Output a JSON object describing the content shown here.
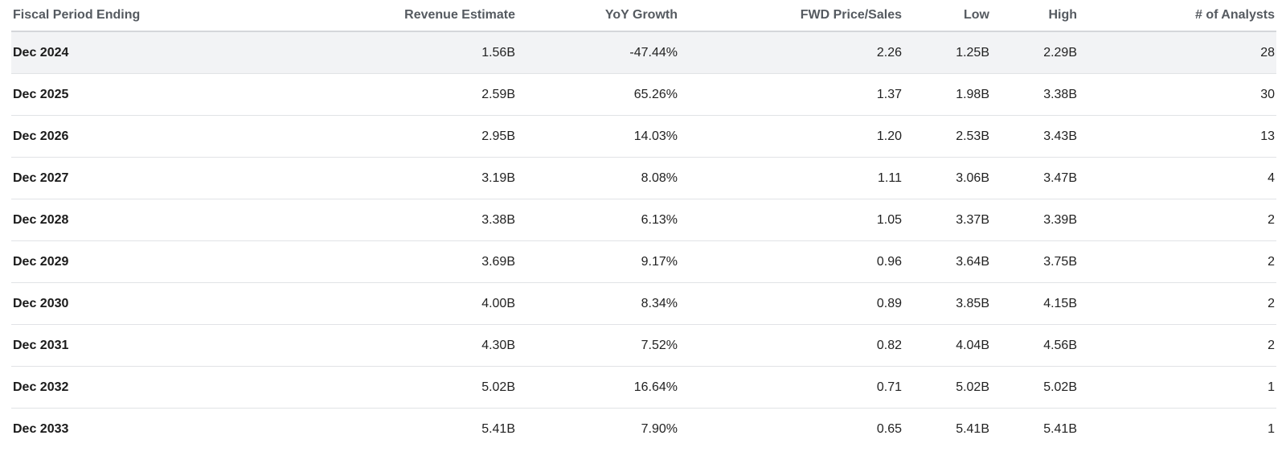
{
  "table": {
    "columns": [
      "Fiscal Period Ending",
      "Revenue Estimate",
      "YoY Growth",
      "FWD Price/Sales",
      "Low",
      "High",
      "# of Analysts"
    ],
    "rows": [
      [
        "Dec 2024",
        "1.56B",
        "-47.44%",
        "2.26",
        "1.25B",
        "2.29B",
        "28"
      ],
      [
        "Dec 2025",
        "2.59B",
        "65.26%",
        "1.37",
        "1.98B",
        "3.38B",
        "30"
      ],
      [
        "Dec 2026",
        "2.95B",
        "14.03%",
        "1.20",
        "2.53B",
        "3.43B",
        "13"
      ],
      [
        "Dec 2027",
        "3.19B",
        "8.08%",
        "1.11",
        "3.06B",
        "3.47B",
        "4"
      ],
      [
        "Dec 2028",
        "3.38B",
        "6.13%",
        "1.05",
        "3.37B",
        "3.39B",
        "2"
      ],
      [
        "Dec 2029",
        "3.69B",
        "9.17%",
        "0.96",
        "3.64B",
        "3.75B",
        "2"
      ],
      [
        "Dec 2030",
        "4.00B",
        "8.34%",
        "0.89",
        "3.85B",
        "4.15B",
        "2"
      ],
      [
        "Dec 2031",
        "4.30B",
        "7.52%",
        "0.82",
        "4.04B",
        "4.56B",
        "2"
      ],
      [
        "Dec 2032",
        "5.02B",
        "16.64%",
        "0.71",
        "5.02B",
        "5.02B",
        "1"
      ],
      [
        "Dec 2033",
        "5.41B",
        "7.90%",
        "0.65",
        "5.41B",
        "5.41B",
        "1"
      ]
    ],
    "highlighted_row": 0
  }
}
